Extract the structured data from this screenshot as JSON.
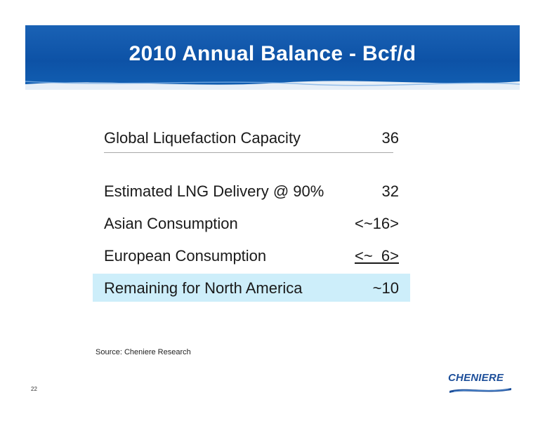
{
  "slide": {
    "title": "2010 Annual Balance - Bcf/d",
    "page_number": "22",
    "source": "Source: Cheniere Research",
    "logo_text": "CHENIERE"
  },
  "balance_rows": [
    {
      "label": "Global Liquefaction Capacity",
      "value": "36"
    },
    {
      "label": "Estimated LNG Delivery @ 90%",
      "value": "32"
    },
    {
      "label": "Asian Consumption",
      "value": "<~16>"
    },
    {
      "label": "European Consumption",
      "value": "<~  6>"
    },
    {
      "label": "Remaining for North America",
      "value": "~10"
    }
  ],
  "colors": {
    "banner_blue": "#0d52a6",
    "highlight": "#cdeefa",
    "logo_blue": "#1d4f9a"
  }
}
